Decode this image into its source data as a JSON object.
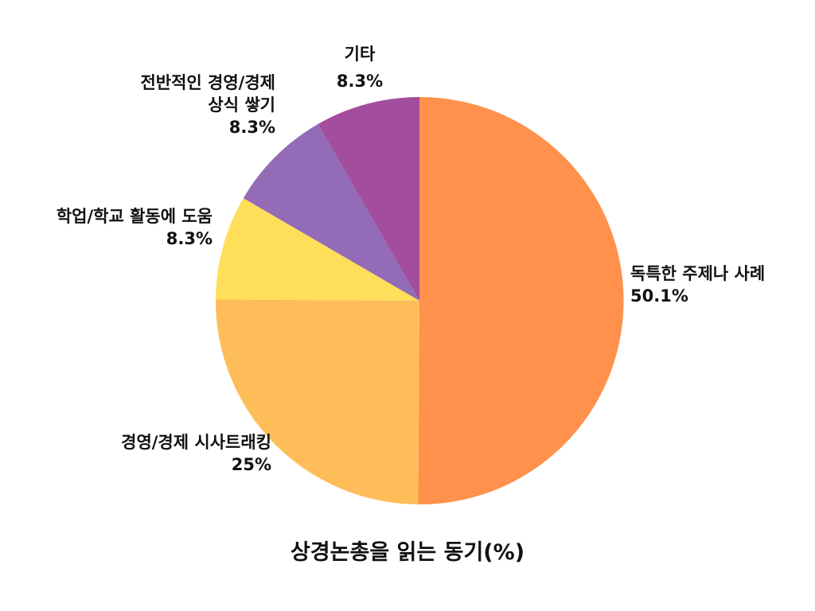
{
  "chart_data": {
    "type": "pie",
    "title": "상경논총을 읽는 동기(%)",
    "slices": [
      {
        "label": "독특한 주제나 사례",
        "value": 50.1,
        "value_label": "50.1%",
        "color": "#FF914D"
      },
      {
        "label": "경영/경제 시사트래킹",
        "value": 25,
        "value_label": "25%",
        "color": "#FFBD59"
      },
      {
        "label": "학업/학교 활동에 도움",
        "value": 8.3,
        "value_label": "8.3%",
        "color": "#FFDE59"
      },
      {
        "label": "전반적인 경영/경제 상식 쌓기",
        "label_lines": [
          "전반적인 경영/경제",
          "상식 쌓기"
        ],
        "value": 8.3,
        "value_label": "8.3%",
        "color": "#936BB6"
      },
      {
        "label": "기타",
        "value": 8.3,
        "value_label": "8.3%",
        "color": "#A24D9E"
      }
    ]
  }
}
